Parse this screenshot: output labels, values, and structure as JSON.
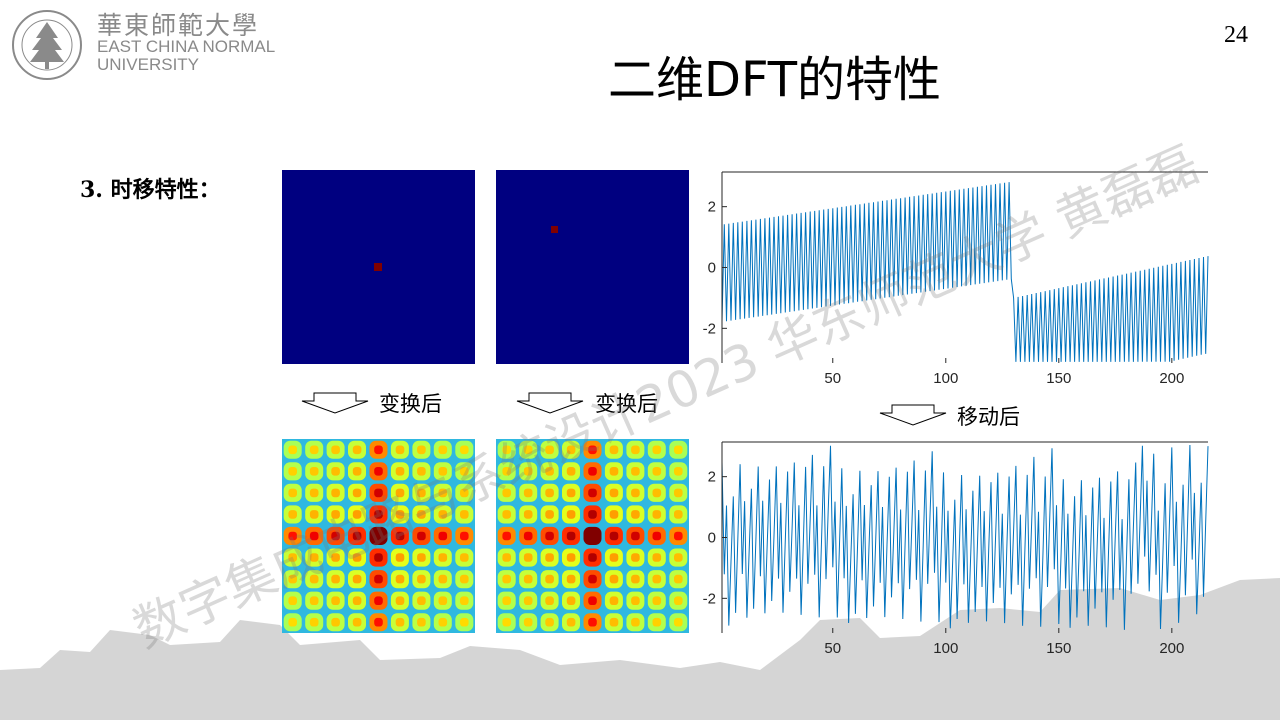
{
  "header": {
    "logo_cn": "華東師範大學",
    "logo_en_line1": "EAST CHINA NORMAL",
    "logo_en_line2": "UNIVERSITY",
    "page_number": "24",
    "title": "二维DFT的特性"
  },
  "section_label": "3. 时移特性：",
  "arrows": {
    "left_label": "变换后",
    "middle_label": "变换后",
    "right_label": "移动后"
  },
  "watermark": "数字集成电路与系统设计2023 华东师范大学 黄磊磊",
  "colors": {
    "image_bg": "#000080",
    "impulse": "#800000",
    "line": "#0072BD"
  },
  "image_panels": {
    "original_impulse": "centered",
    "shifted_impulse": "top-left of center"
  },
  "chart_data": [
    {
      "type": "line",
      "title": "",
      "xlabel": "",
      "ylabel": "",
      "xlim": [
        1,
        216
      ],
      "ylim": [
        -3.14,
        3.14
      ],
      "xticks": [
        50,
        100,
        150,
        200
      ],
      "yticks": [
        2,
        0,
        -2
      ],
      "series": [
        {
          "values": "phase: linear trend wraps at x≈130, oscillation amplitude ~3"
        }
      ]
    },
    {
      "type": "line",
      "title": "",
      "xlabel": "",
      "ylabel": "",
      "xlim": [
        1,
        216
      ],
      "ylim": [
        -3.14,
        3.14
      ],
      "xticks": [
        50,
        100,
        150,
        200
      ],
      "yticks": [
        2,
        0,
        -2
      ],
      "series": [
        {
          "values": "phase oscillating between about -3 and 3"
        }
      ]
    }
  ]
}
